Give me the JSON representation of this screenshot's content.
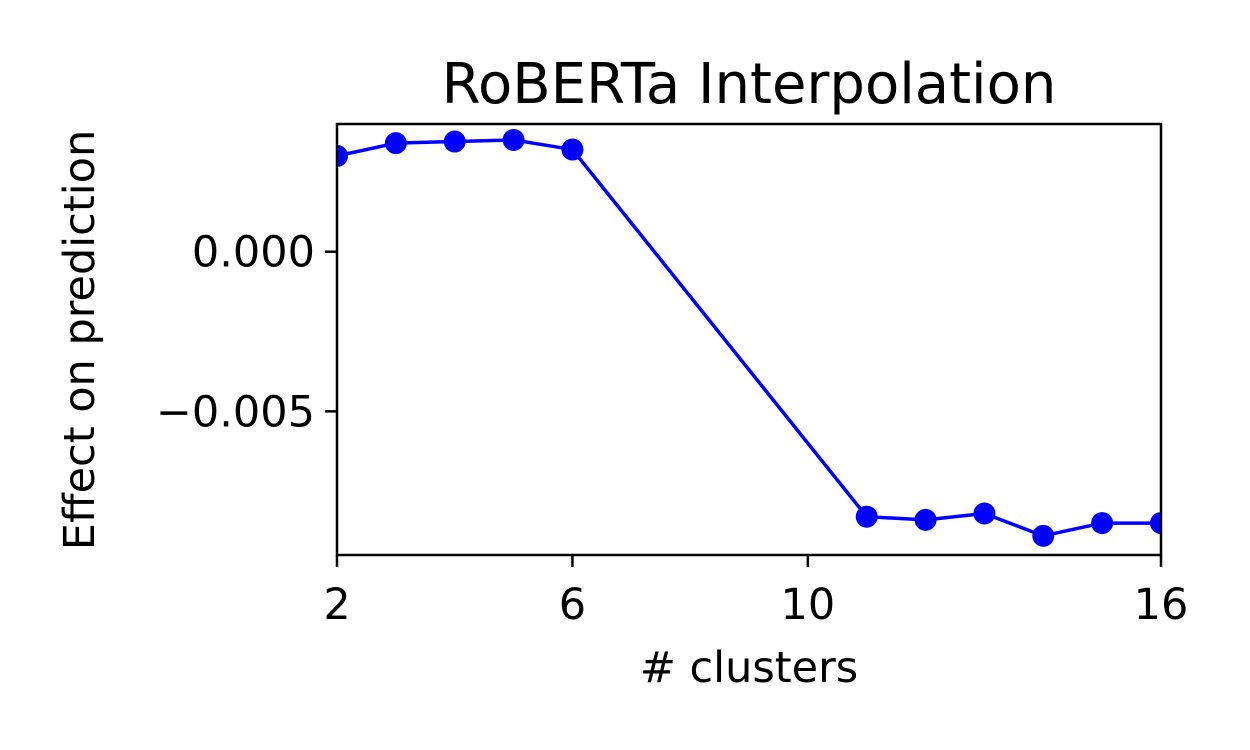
{
  "chart_data": {
    "type": "line",
    "title": "RoBERTa Interpolation",
    "xlabel": "# clusters",
    "ylabel": "Effect on prediction",
    "xlim": [
      2,
      16
    ],
    "ylim": [
      -0.0095,
      0.004
    ],
    "xticks": [
      2,
      6,
      10,
      16
    ],
    "xtick_labels": [
      "2",
      "6",
      "10",
      "16"
    ],
    "yticks": [
      0.0,
      -0.005
    ],
    "ytick_labels": [
      "0.000",
      "−0.005"
    ],
    "grid": false,
    "legend": "none",
    "series": [
      {
        "color": "#0000ff",
        "marker": "circle",
        "x": [
          2,
          3,
          4,
          5,
          6,
          11,
          12,
          13,
          14,
          15,
          16
        ],
        "values": [
          0.003,
          0.0034,
          0.00345,
          0.0035,
          0.0032,
          -0.0083,
          -0.0084,
          -0.0082,
          -0.0089,
          -0.0085,
          -0.0085
        ]
      }
    ]
  }
}
